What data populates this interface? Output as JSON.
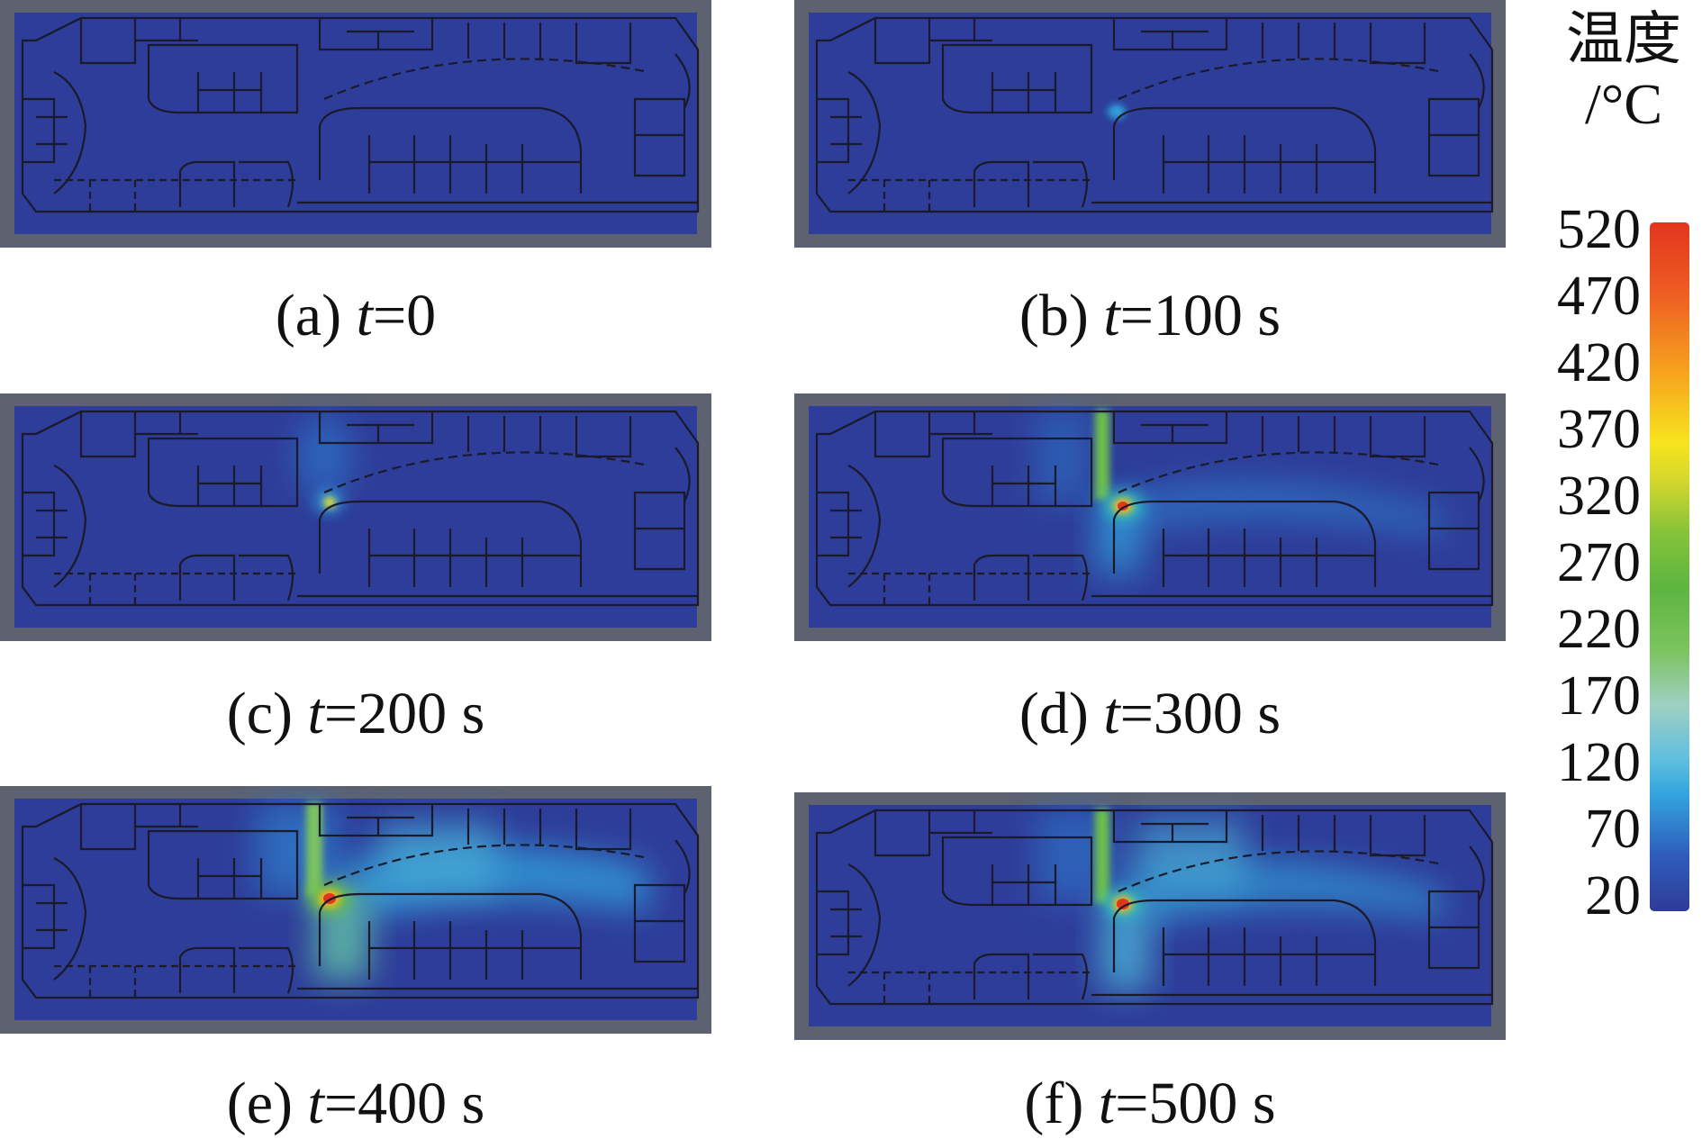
{
  "legend": {
    "title_line1": "温度",
    "title_line2": "/°C",
    "ticks": [
      "520",
      "470",
      "420",
      "370",
      "320",
      "270",
      "220",
      "170",
      "120",
      "70",
      "20"
    ]
  },
  "panels": [
    {
      "letter": "(a)",
      "var": "t",
      "value": "=0"
    },
    {
      "letter": "(b)",
      "var": "t",
      "value": "=100 s"
    },
    {
      "letter": "(c)",
      "var": "t",
      "value": "=200 s"
    },
    {
      "letter": "(d)",
      "var": "t",
      "value": "=300 s"
    },
    {
      "letter": "(e)",
      "var": "t",
      "value": "=400 s"
    },
    {
      "letter": "(f)",
      "var": "t",
      "value": "=500 s"
    }
  ],
  "colors": {
    "frame": "#5d6170",
    "floor": "#2e3d99",
    "walls": "#1a1a2a"
  }
}
